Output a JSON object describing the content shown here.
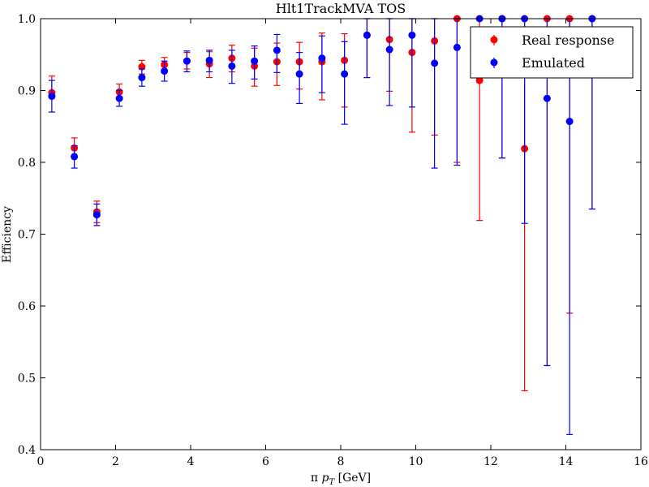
{
  "chart_data": {
    "type": "scatter",
    "title": "Hlt1TrackMVA TOS",
    "xlabel_prefix": "π ",
    "xlabel_var": "p",
    "xlabel_sub": "T",
    "xlabel_suffix": " [GeV]",
    "ylabel": "Efficiency",
    "xlim": [
      0,
      16
    ],
    "ylim": [
      0.4,
      1.0
    ],
    "xticks": [
      0,
      2,
      4,
      6,
      8,
      10,
      12,
      14,
      16
    ],
    "xtick_labels": [
      "0",
      "2",
      "4",
      "6",
      "8",
      "10",
      "12",
      "14",
      "16"
    ],
    "yticks": [
      0.4,
      0.5,
      0.6,
      0.7,
      0.8,
      0.9,
      1.0
    ],
    "ytick_labels": [
      "0.4",
      "0.5",
      "0.6",
      "0.7",
      "0.8",
      "0.9",
      "1.0"
    ],
    "legend_position": "top-right",
    "series": [
      {
        "name": "Real response",
        "color": "#ff0000",
        "x": [
          0.3,
          0.9,
          1.5,
          2.1,
          2.7,
          3.3,
          3.9,
          4.5,
          5.1,
          5.7,
          6.3,
          6.9,
          7.5,
          8.1,
          8.7,
          9.3,
          9.9,
          10.5,
          11.1,
          11.7,
          12.3,
          12.9,
          13.5,
          14.1,
          14.7
        ],
        "y": [
          0.897,
          0.82,
          0.731,
          0.898,
          0.933,
          0.936,
          0.941,
          0.937,
          0.945,
          0.934,
          0.94,
          0.94,
          0.94,
          0.942,
          0.977,
          0.971,
          0.953,
          0.969,
          1.0,
          0.914,
          1.0,
          0.819,
          1.0,
          1.0,
          1.0
        ],
        "yerr_low": [
          0.897,
          0.808,
          0.716,
          0.888,
          0.923,
          0.926,
          0.93,
          0.918,
          0.926,
          0.906,
          0.907,
          0.902,
          0.887,
          0.877,
          0.918,
          0.899,
          0.842,
          0.838,
          0.8,
          0.719,
          0.806,
          0.482,
          0.517,
          0.59,
          0.735
        ],
        "yerr_high": [
          0.92,
          0.834,
          0.746,
          0.909,
          0.942,
          0.946,
          0.953,
          0.954,
          0.963,
          0.959,
          0.966,
          0.967,
          0.98,
          0.979,
          1.0,
          1.0,
          1.0,
          1.0,
          1.0,
          1.0,
          1.0,
          1.0,
          1.0,
          1.0,
          1.0
        ]
      },
      {
        "name": "Emulated",
        "color": "#0000ff",
        "x": [
          0.3,
          0.9,
          1.5,
          2.1,
          2.7,
          3.3,
          3.9,
          4.5,
          5.1,
          5.7,
          6.3,
          6.9,
          7.5,
          8.1,
          8.7,
          9.3,
          9.9,
          10.5,
          11.1,
          11.7,
          12.3,
          12.9,
          13.5,
          14.1,
          14.7
        ],
        "y": [
          0.892,
          0.808,
          0.727,
          0.889,
          0.918,
          0.927,
          0.941,
          0.942,
          0.934,
          0.941,
          0.956,
          0.923,
          0.945,
          0.923,
          0.977,
          0.957,
          0.977,
          0.938,
          0.96,
          1.0,
          1.0,
          1.0,
          0.889,
          0.857,
          1.0
        ],
        "yerr_low": [
          0.87,
          0.792,
          0.712,
          0.878,
          0.906,
          0.913,
          0.926,
          0.926,
          0.91,
          0.916,
          0.925,
          0.882,
          0.897,
          0.853,
          0.918,
          0.879,
          0.877,
          0.792,
          0.796,
          1.0,
          0.806,
          0.715,
          0.517,
          0.421,
          0.735
        ],
        "yerr_high": [
          0.914,
          0.823,
          0.742,
          0.9,
          0.93,
          0.941,
          0.955,
          0.956,
          0.956,
          0.962,
          0.978,
          0.953,
          0.976,
          0.968,
          1.0,
          1.0,
          1.0,
          1.0,
          1.0,
          1.0,
          1.0,
          1.0,
          1.0,
          1.0,
          1.0
        ]
      }
    ]
  }
}
